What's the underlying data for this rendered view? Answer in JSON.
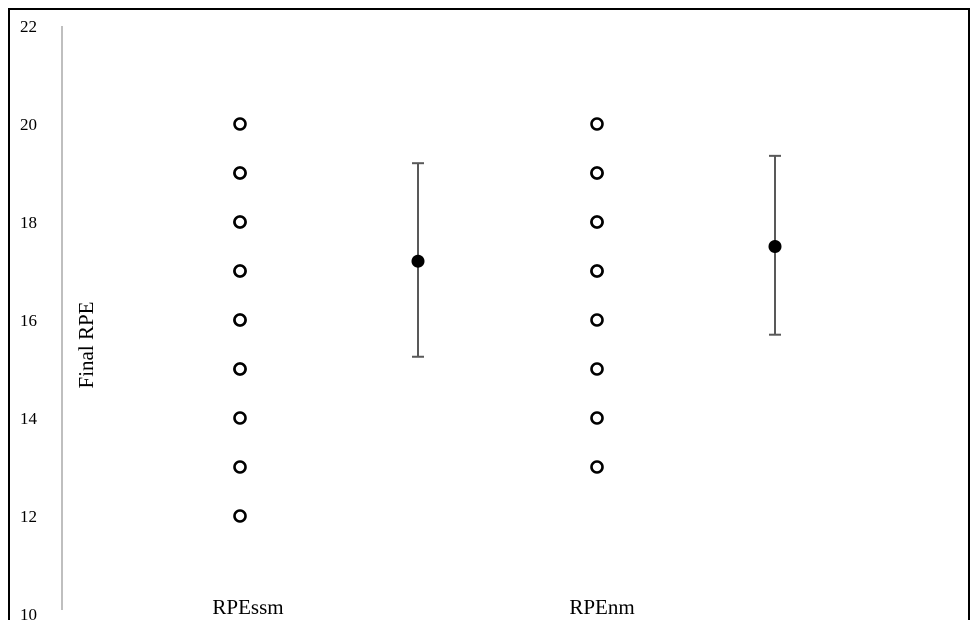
{
  "chart_data": {
    "type": "scatter",
    "title": "",
    "xlabel": "",
    "ylabel": "Final RPE",
    "ylim": [
      10,
      22
    ],
    "yticks": [
      10,
      12,
      14,
      16,
      18,
      20,
      22
    ],
    "grid": false,
    "legend": "none",
    "categories": [
      "RPEssm",
      "RPEnm"
    ],
    "series": [
      {
        "category": "RPEssm",
        "individual_values": [
          20,
          19,
          19,
          18,
          18,
          17,
          17,
          16,
          16,
          15,
          15,
          14,
          13,
          12
        ],
        "mean": 17.2,
        "error_low": 15.25,
        "error_high": 19.2
      },
      {
        "category": "RPEnm",
        "individual_values": [
          20,
          19,
          19,
          18,
          18,
          17,
          17,
          16,
          15,
          14,
          13
        ],
        "mean": 17.5,
        "error_low": 15.7,
        "error_high": 19.35
      }
    ],
    "colors": {
      "points": "#000000",
      "error_bar": "#595959",
      "axis": "#bfbfbf"
    }
  }
}
